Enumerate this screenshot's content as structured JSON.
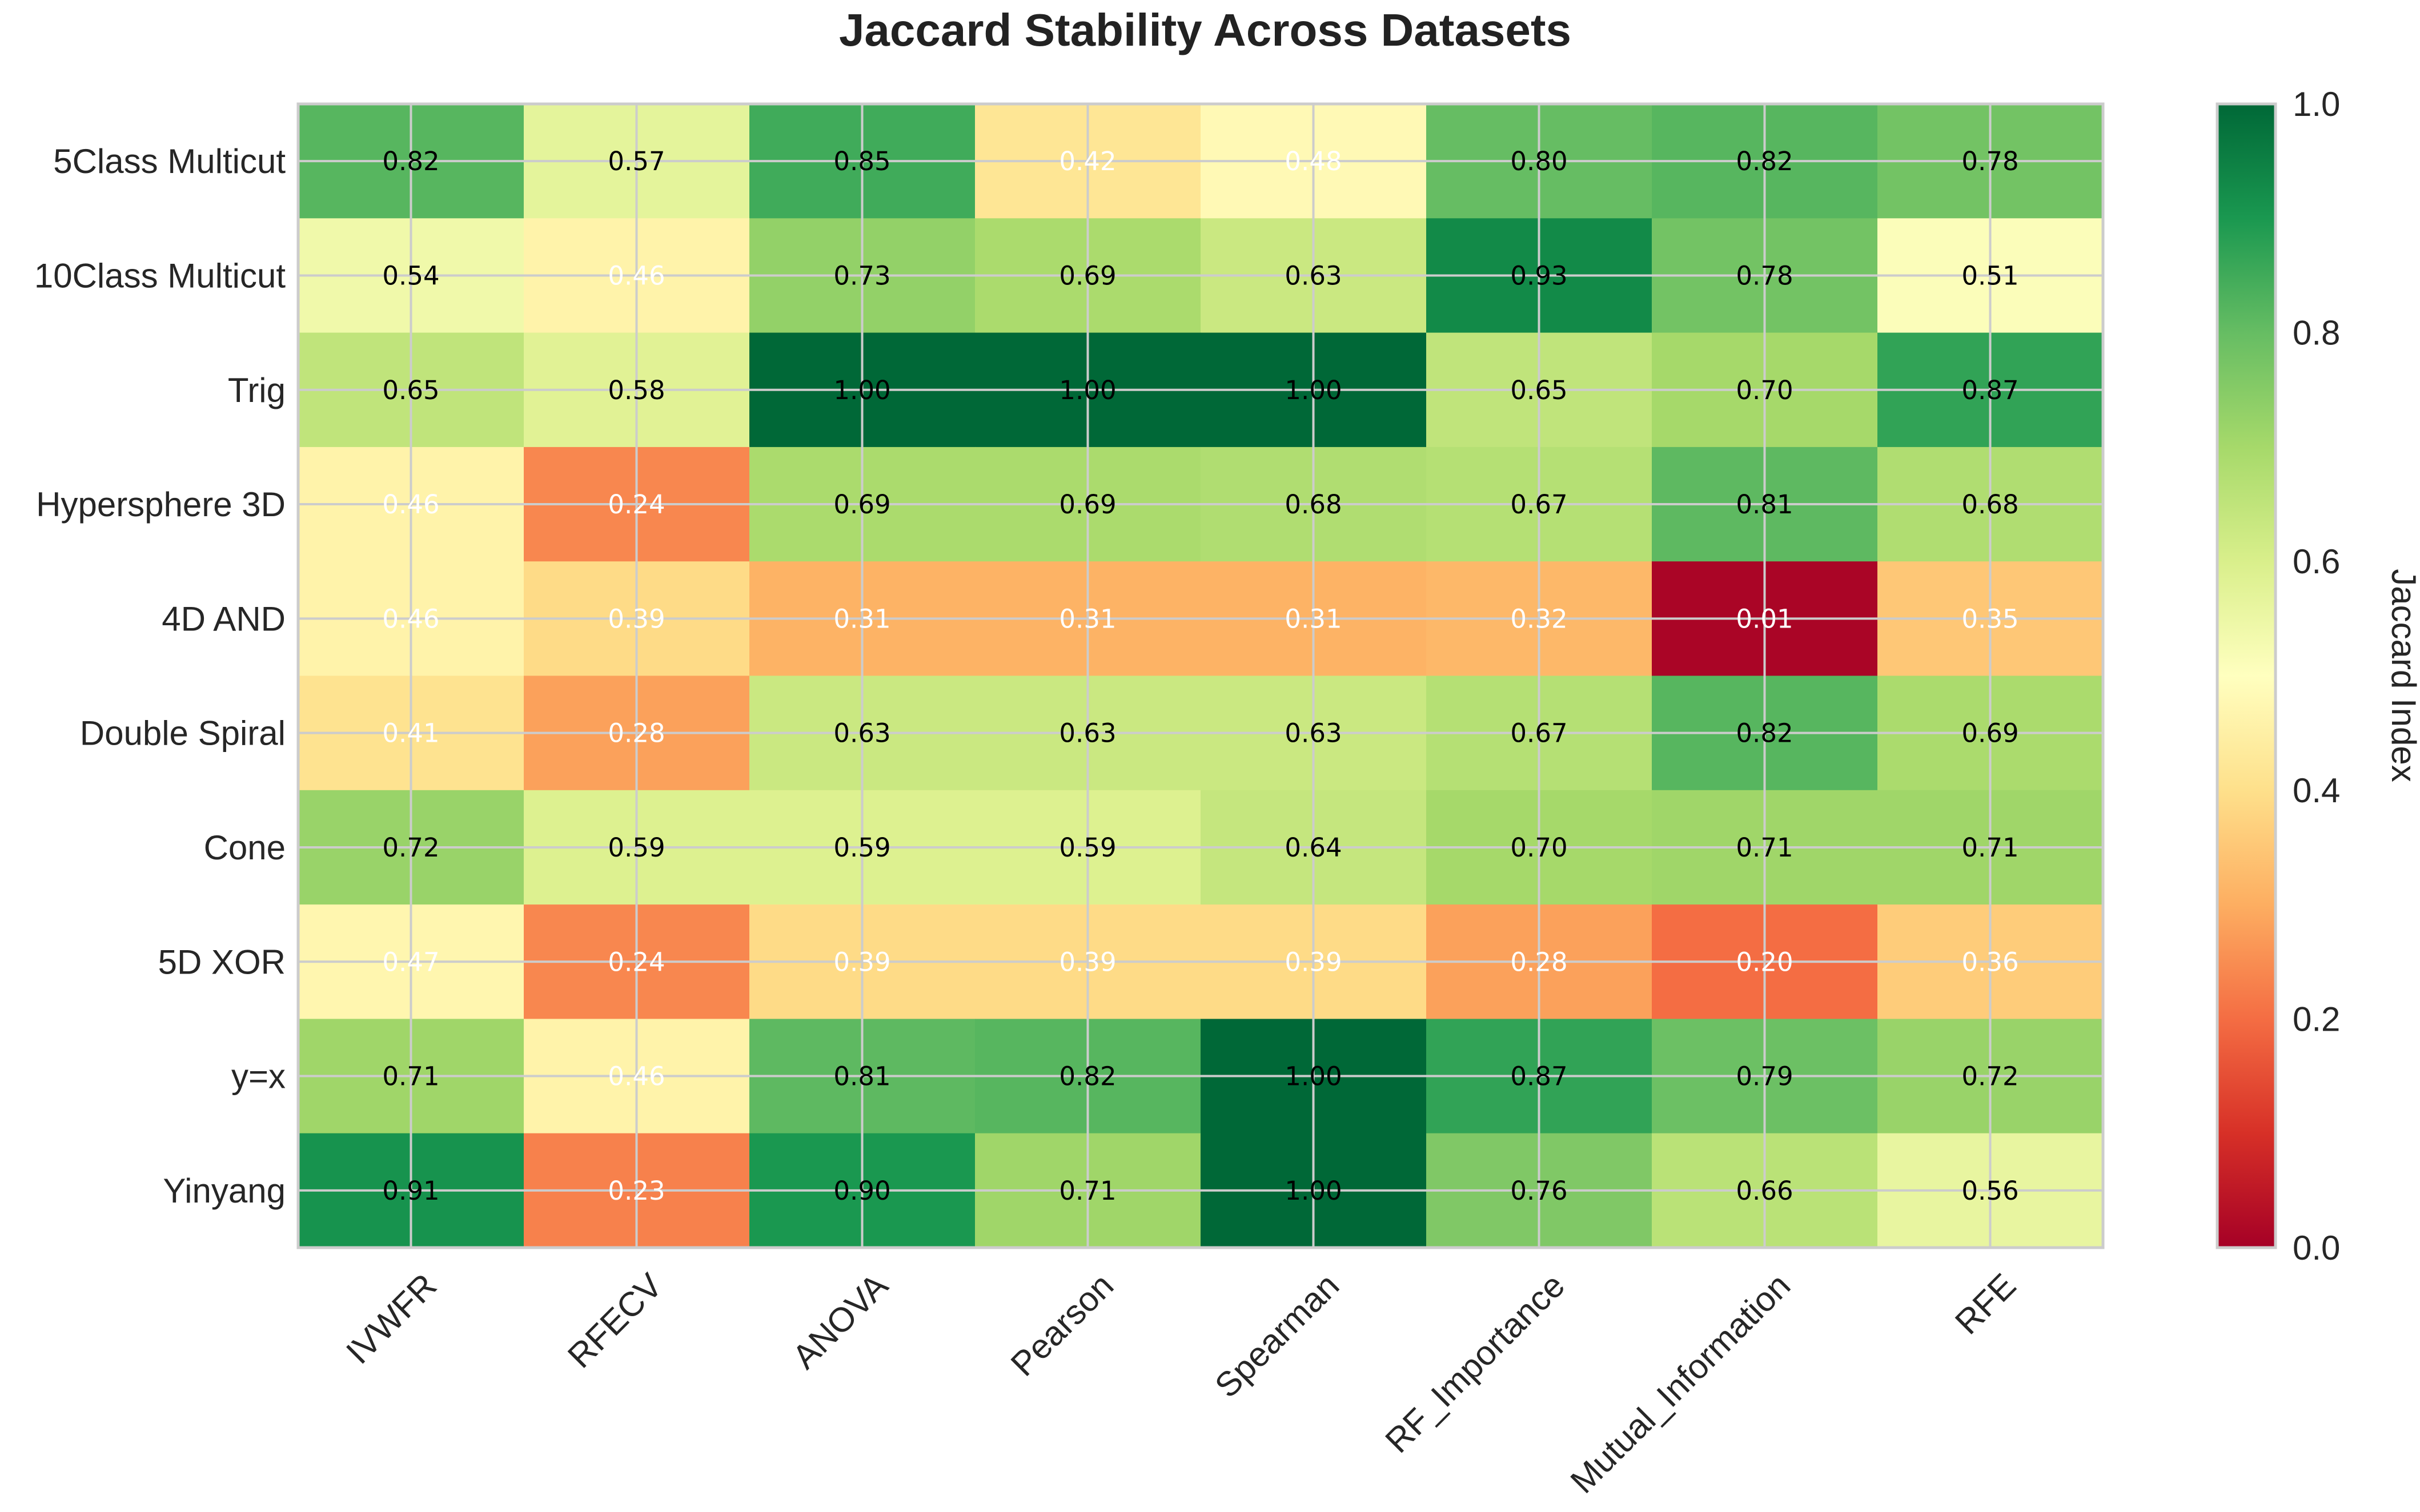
{
  "chart_data": {
    "type": "heatmap",
    "title": "Jaccard Stability Across Datasets",
    "rows": [
      "5Class Multicut",
      "10Class Multicut",
      "Trig",
      "Hypersphere 3D",
      "4D AND",
      "Double Spiral",
      "Cone",
      "5D XOR",
      "y=x",
      "Yinyang"
    ],
    "columns": [
      "IVWFR",
      "RFECV",
      "ANOVA",
      "Pearson",
      "Spearman",
      "RF_Importance",
      "Mutual_Information",
      "RFE"
    ],
    "values": [
      [
        0.82,
        0.57,
        0.85,
        0.42,
        0.48,
        0.8,
        0.82,
        0.78
      ],
      [
        0.54,
        0.46,
        0.73,
        0.69,
        0.63,
        0.93,
        0.78,
        0.51
      ],
      [
        0.65,
        0.58,
        1.0,
        1.0,
        1.0,
        0.65,
        0.7,
        0.87
      ],
      [
        0.46,
        0.24,
        0.69,
        0.69,
        0.68,
        0.67,
        0.81,
        0.68
      ],
      [
        0.46,
        0.39,
        0.31,
        0.31,
        0.31,
        0.32,
        0.01,
        0.35
      ],
      [
        0.41,
        0.28,
        0.63,
        0.63,
        0.63,
        0.67,
        0.82,
        0.69
      ],
      [
        0.72,
        0.59,
        0.59,
        0.59,
        0.64,
        0.7,
        0.71,
        0.71
      ],
      [
        0.47,
        0.24,
        0.39,
        0.39,
        0.39,
        0.28,
        0.2,
        0.36
      ],
      [
        0.71,
        0.46,
        0.81,
        0.82,
        1.0,
        0.87,
        0.79,
        0.72
      ],
      [
        0.91,
        0.23,
        0.9,
        0.71,
        1.0,
        0.76,
        0.66,
        0.56
      ]
    ],
    "colormap": "RdYlGn",
    "vmin": 0.0,
    "vmax": 1.0,
    "colorbar_label": "Jaccard Index",
    "colorbar_ticks": [
      "0.0",
      "0.2",
      "0.4",
      "0.6",
      "0.8",
      "1.0"
    ],
    "grid": true,
    "value_label_colors": {
      "dark": "#000000",
      "light": "#ffffff"
    }
  }
}
